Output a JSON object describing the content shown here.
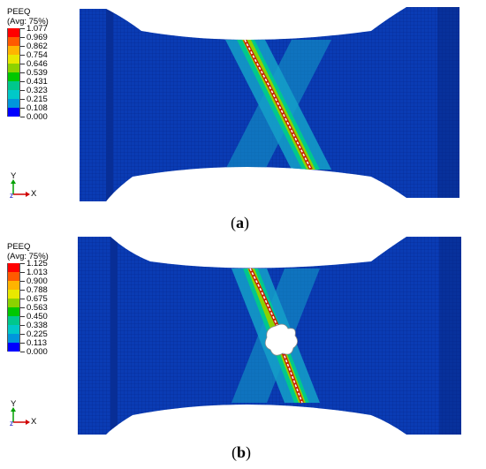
{
  "panels": [
    {
      "id": "a",
      "legend": {
        "title": "PEEQ",
        "subtitle": "(Avg: 75%)",
        "values": [
          "1.077",
          "0.969",
          "0.862",
          "0.754",
          "0.646",
          "0.539",
          "0.431",
          "0.323",
          "0.215",
          "0.108",
          "0.000"
        ]
      },
      "axes": {
        "y": "Y",
        "x": "X"
      },
      "caption": {
        "open": "(",
        "letter": "a",
        "close": ")"
      }
    },
    {
      "id": "b",
      "legend": {
        "title": "PEEQ",
        "subtitle": "(Avg: 75%)",
        "values": [
          "1.125",
          "1.013",
          "0.900",
          "0.788",
          "0.675",
          "0.563",
          "0.450",
          "0.338",
          "0.225",
          "0.113",
          "0.000"
        ]
      },
      "axes": {
        "y": "Y",
        "x": "X"
      },
      "caption": {
        "open": "(",
        "letter": "b",
        "close": ")"
      }
    }
  ],
  "colors": {
    "scale": [
      "#ff0000",
      "#ff5a00",
      "#ffb400",
      "#e8e800",
      "#8cd200",
      "#00c800",
      "#00c88c",
      "#00c8c8",
      "#0096dc",
      "#0050f0",
      "#0000ff"
    ],
    "mesh_base": "#0a3cb4"
  }
}
